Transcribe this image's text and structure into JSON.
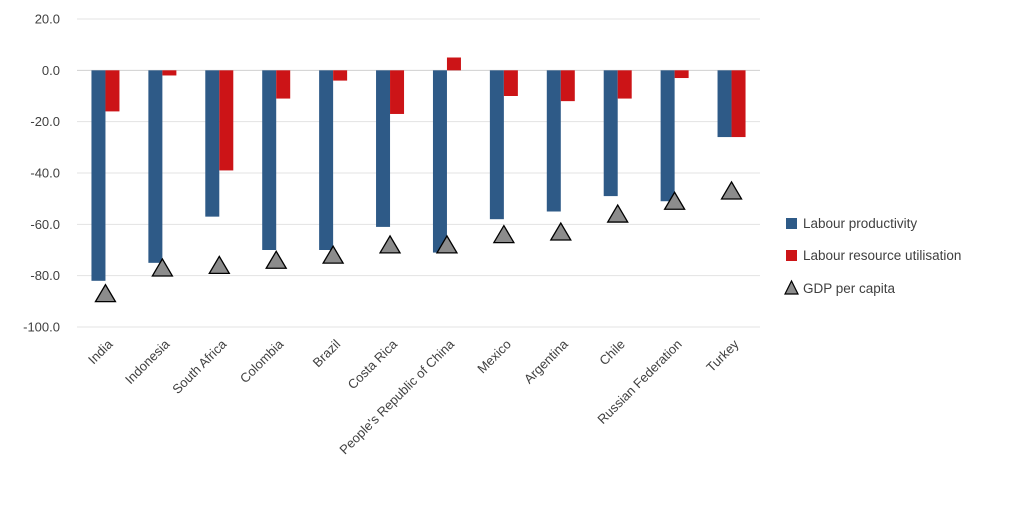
{
  "chart_data": {
    "type": "bar",
    "categories": [
      "India",
      "Indonesia",
      "South Africa",
      "Colombia",
      "Brazil",
      "Costa Rica",
      "People's Republic of China",
      "Mexico",
      "Argentina",
      "Chile",
      "Russian Federation",
      "Turkey"
    ],
    "series": [
      {
        "name": "Labour productivity",
        "kind": "bar",
        "color": "#2e5a87",
        "values": [
          -82,
          -75,
          -57,
          -70,
          -70,
          -61,
          -71,
          -58,
          -55,
          -49,
          -51,
          -26
        ]
      },
      {
        "name": "Labour resource utilisation",
        "kind": "bar",
        "color": "#cc1417",
        "values": [
          -16,
          -2,
          -39,
          -11,
          -4,
          -17,
          5,
          -10,
          -12,
          -11,
          -3,
          -26
        ]
      },
      {
        "name": "GDP per capita",
        "kind": "marker",
        "marker": "triangle",
        "color": "#8c8c8c",
        "values": [
          -87,
          -77,
          -76,
          -74,
          -72,
          -68,
          -68,
          -64,
          -63,
          -56,
          -51,
          -47
        ]
      }
    ],
    "ylim": [
      -100,
      20
    ],
    "yticks": [
      "20.0",
      "0.0",
      "-20.0",
      "-40.0",
      "-60.0",
      "-80.0",
      "-100.0"
    ],
    "ytick_values": [
      20,
      0,
      -20,
      -40,
      -60,
      -80,
      -100
    ],
    "grid": true,
    "legend_position": "right"
  }
}
